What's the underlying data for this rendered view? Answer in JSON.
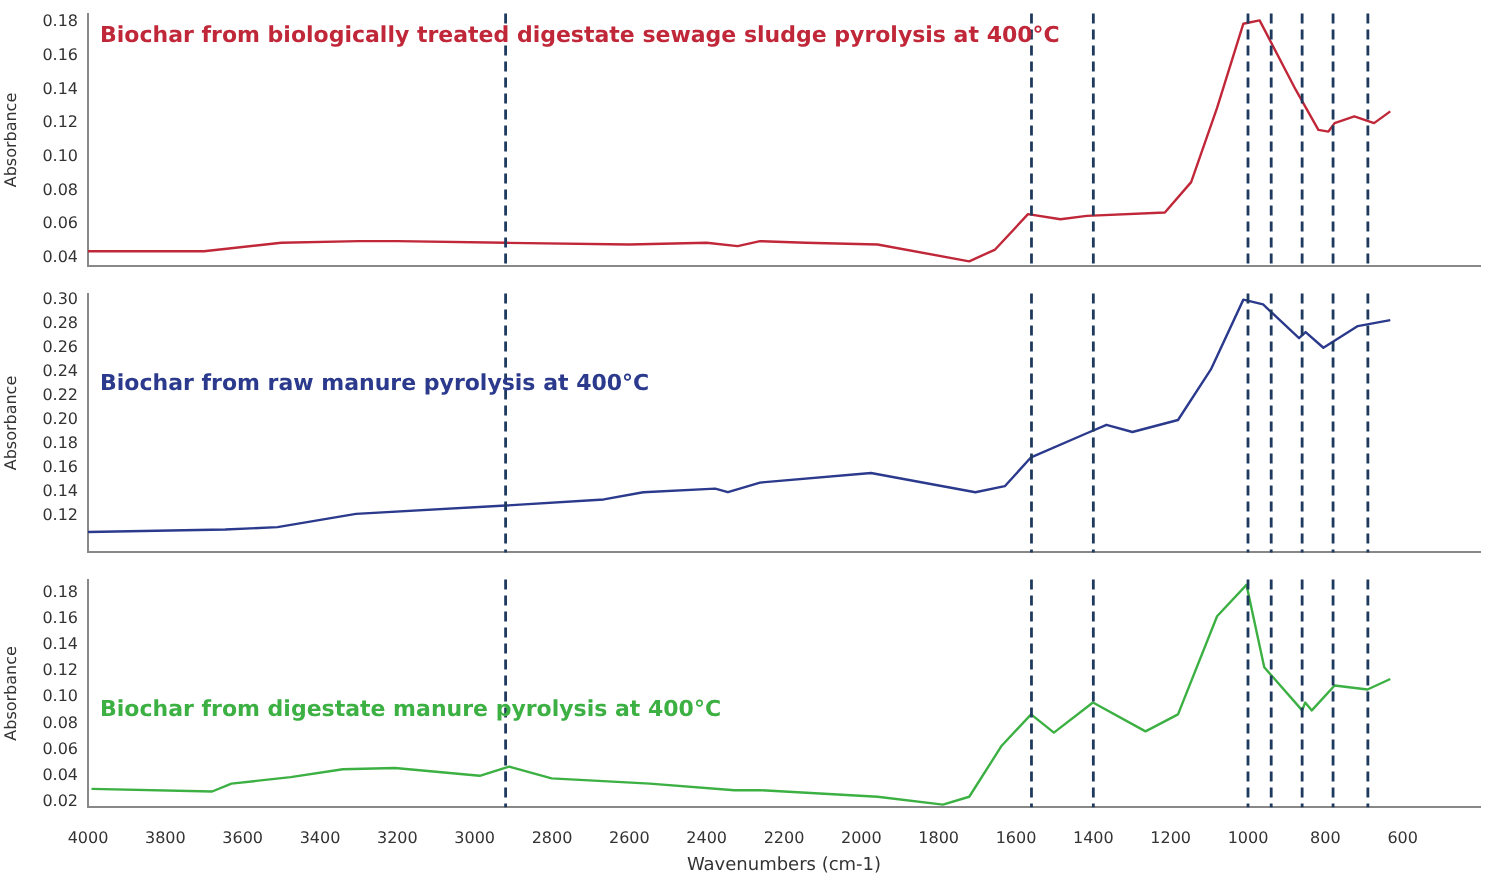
{
  "chart_data": [
    {
      "type": "line",
      "ylabel": "Absorbance",
      "tick_labels": "y",
      "grid": false,
      "marker": "none",
      "line_style": "solid",
      "xlim": [
        4000,
        400
      ],
      "ylim": [
        0.035,
        0.185
      ],
      "yticks": [
        0.04,
        0.06,
        0.08,
        {
          "value": 0.1,
          "label": "0.10"
        },
        0.12,
        0.14,
        0.16,
        0.18
      ],
      "series": [
        {
          "name": "Biochar from biologically treated digestate sewage sludge pyrolysis at 400°C",
          "color": "#c0283a",
          "x": [
            4000,
            3700,
            3500,
            3300,
            3200,
            2920,
            2600,
            2400,
            2320,
            2262,
            2144,
            1958,
            1721,
            1654,
            1569,
            1485,
            1417,
            1215,
            1147,
            1080,
            1012,
            970,
            877,
            818,
            792,
            776,
            725,
            674,
            632
          ],
          "values": [
            0.044,
            0.044,
            0.049,
            0.05,
            0.05,
            0.049,
            0.048,
            0.049,
            0.047,
            0.05,
            0.049,
            0.048,
            0.038,
            0.045,
            0.066,
            0.063,
            0.065,
            0.067,
            0.085,
            0.129,
            0.179,
            0.181,
            0.14,
            0.116,
            0.115,
            0.12,
            0.124,
            0.12,
            0.127
          ]
        }
      ],
      "ref_lines": [
        {
          "axis": "x",
          "value": 2920,
          "color": "#1f3a5f",
          "line_style": "dashed"
        },
        {
          "axis": "x",
          "value": 1560,
          "color": "#1f3a5f",
          "line_style": "dashed"
        },
        {
          "axis": "x",
          "value": 1400,
          "color": "#1f3a5f",
          "line_style": "dashed"
        },
        {
          "axis": "x",
          "value": 1000,
          "color": "#1f3a5f",
          "line_style": "dashed"
        },
        {
          "axis": "x",
          "value": 940,
          "color": "#1f3a5f",
          "line_style": "dashed"
        },
        {
          "axis": "x",
          "value": 860,
          "color": "#1f3a5f",
          "line_style": "dashed"
        },
        {
          "axis": "x",
          "value": 780,
          "color": "#1f3a5f",
          "line_style": "dashed"
        },
        {
          "axis": "x",
          "value": 690,
          "color": "#1f3a5f",
          "line_style": "dashed"
        }
      ]
    },
    {
      "type": "line",
      "ylabel": "Absorbance",
      "tick_labels": "y",
      "grid": false,
      "marker": "none",
      "line_style": "solid",
      "xlim": [
        4000,
        400
      ],
      "ylim": [
        0.09,
        0.305
      ],
      "yticks": [
        0.12,
        0.14,
        0.16,
        0.18,
        {
          "value": 0.2,
          "label": "0.20"
        },
        0.22,
        0.24,
        0.26,
        0.28,
        {
          "value": 0.3,
          "label": "0.30"
        }
      ],
      "series": [
        {
          "name": "Biochar from raw manure pyrolysis at 400°C",
          "color": "#2b3a8c",
          "x": [
            4000,
            3645,
            3510,
            3307,
            2919,
            2666,
            2564,
            2378,
            2345,
            2262,
            1975,
            1705,
            1629,
            1561,
            1417,
            1366,
            1299,
            1181,
            1096,
            1012,
            961,
            868,
            851,
            805,
            716,
            632
          ],
          "values": [
            0.107,
            0.109,
            0.111,
            0.122,
            0.129,
            0.134,
            0.14,
            0.143,
            0.14,
            0.148,
            0.156,
            0.14,
            0.145,
            0.169,
            0.189,
            0.196,
            0.19,
            0.2,
            0.242,
            0.3,
            0.296,
            0.268,
            0.273,
            0.26,
            0.278,
            0.283
          ]
        }
      ],
      "ref_lines": [
        {
          "axis": "x",
          "value": 2920,
          "color": "#1f3a5f",
          "line_style": "dashed"
        },
        {
          "axis": "x",
          "value": 1560,
          "color": "#1f3a5f",
          "line_style": "dashed"
        },
        {
          "axis": "x",
          "value": 1400,
          "color": "#1f3a5f",
          "line_style": "dashed"
        },
        {
          "axis": "x",
          "value": 1000,
          "color": "#1f3a5f",
          "line_style": "dashed"
        },
        {
          "axis": "x",
          "value": 940,
          "color": "#1f3a5f",
          "line_style": "dashed"
        },
        {
          "axis": "x",
          "value": 860,
          "color": "#1f3a5f",
          "line_style": "dashed"
        },
        {
          "axis": "x",
          "value": 780,
          "color": "#1f3a5f",
          "line_style": "dashed"
        },
        {
          "axis": "x",
          "value": 690,
          "color": "#1f3a5f",
          "line_style": "dashed"
        }
      ]
    },
    {
      "type": "line",
      "ylabel": "Absorbance",
      "xlabel": "Wavenumbers (cm-1)",
      "grid": false,
      "marker": "none",
      "line_style": "solid",
      "xlim": [
        4000,
        400
      ],
      "ylim": [
        0.016,
        0.19
      ],
      "xticks": [
        4000,
        3800,
        3600,
        3400,
        3200,
        3000,
        2800,
        2600,
        2400,
        2200,
        2000,
        1800,
        1600,
        1400,
        1200,
        1000,
        800,
        600
      ],
      "yticks": [
        0.02,
        0.04,
        0.06,
        0.08,
        {
          "value": 0.1,
          "label": "0.10"
        },
        0.12,
        0.14,
        0.16,
        0.18
      ],
      "series": [
        {
          "name": "Biochar from digestate manure pyrolysis at 400°C",
          "color": "#3cb043",
          "x": [
            3991,
            3679,
            3629,
            3476,
            3341,
            3206,
            2987,
            2911,
            2801,
            2547,
            2328,
            2262,
            1958,
            1789,
            1721,
            1637,
            1561,
            1502,
            1401,
            1265,
            1181,
            1080,
            1004,
            958,
            860,
            852,
            835,
            776,
            691,
            632
          ],
          "values": [
            0.03,
            0.028,
            0.034,
            0.039,
            0.045,
            0.046,
            0.04,
            0.047,
            0.038,
            0.034,
            0.029,
            0.029,
            0.024,
            0.018,
            0.024,
            0.063,
            0.087,
            0.073,
            0.096,
            0.074,
            0.087,
            0.162,
            0.186,
            0.123,
            0.09,
            0.096,
            0.09,
            0.109,
            0.106,
            0.114
          ]
        }
      ],
      "ref_lines": [
        {
          "axis": "x",
          "value": 2920,
          "color": "#1f3a5f",
          "line_style": "dashed"
        },
        {
          "axis": "x",
          "value": 1560,
          "color": "#1f3a5f",
          "line_style": "dashed"
        },
        {
          "axis": "x",
          "value": 1400,
          "color": "#1f3a5f",
          "line_style": "dashed"
        },
        {
          "axis": "x",
          "value": 1000,
          "color": "#1f3a5f",
          "line_style": "dashed"
        },
        {
          "axis": "x",
          "value": 940,
          "color": "#1f3a5f",
          "line_style": "dashed"
        },
        {
          "axis": "x",
          "value": 860,
          "color": "#1f3a5f",
          "line_style": "dashed"
        },
        {
          "axis": "x",
          "value": 780,
          "color": "#1f3a5f",
          "line_style": "dashed"
        },
        {
          "axis": "x",
          "value": 690,
          "color": "#1f3a5f",
          "line_style": "dashed"
        }
      ]
    }
  ]
}
